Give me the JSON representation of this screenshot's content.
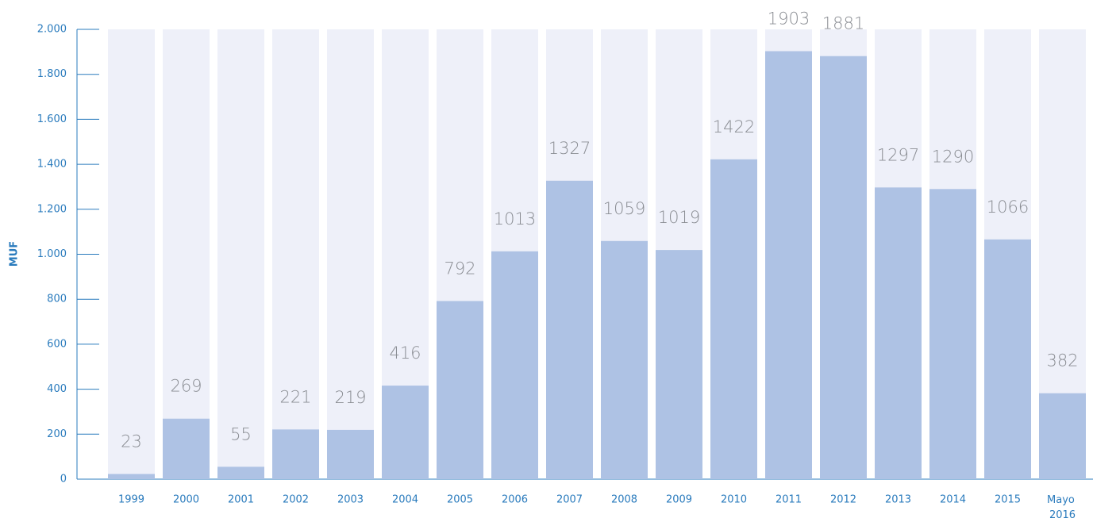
{
  "chart_data": {
    "type": "bar",
    "y_label": "MUF",
    "categories": [
      "1999",
      "2000",
      "2001",
      "2002",
      "2003",
      "2004",
      "2005",
      "2006",
      "2007",
      "2008",
      "2009",
      "2010",
      "2011",
      "2012",
      "2013",
      "2014",
      "2015",
      "Mayo 2016"
    ],
    "values": [
      23,
      269,
      55,
      221,
      219,
      416,
      792,
      1013,
      1327,
      1059,
      1019,
      1422,
      1903,
      1881,
      1297,
      1290,
      1066,
      382
    ],
    "color": "#aec2e4",
    "background_color": "#eef0f9",
    "ylim": [
      0,
      2000
    ],
    "yticks": [
      0,
      200,
      400,
      600,
      800,
      {
        "value": 1000,
        "label": "1.000"
      },
      {
        "value": 1200,
        "label": "1.200"
      },
      {
        "value": 1400,
        "label": "1.400"
      },
      {
        "value": 1600,
        "label": "1.600"
      },
      {
        "value": 1800,
        "label": "1.800"
      },
      {
        "value": 2000,
        "label": "2.000"
      }
    ],
    "grid": false
  }
}
